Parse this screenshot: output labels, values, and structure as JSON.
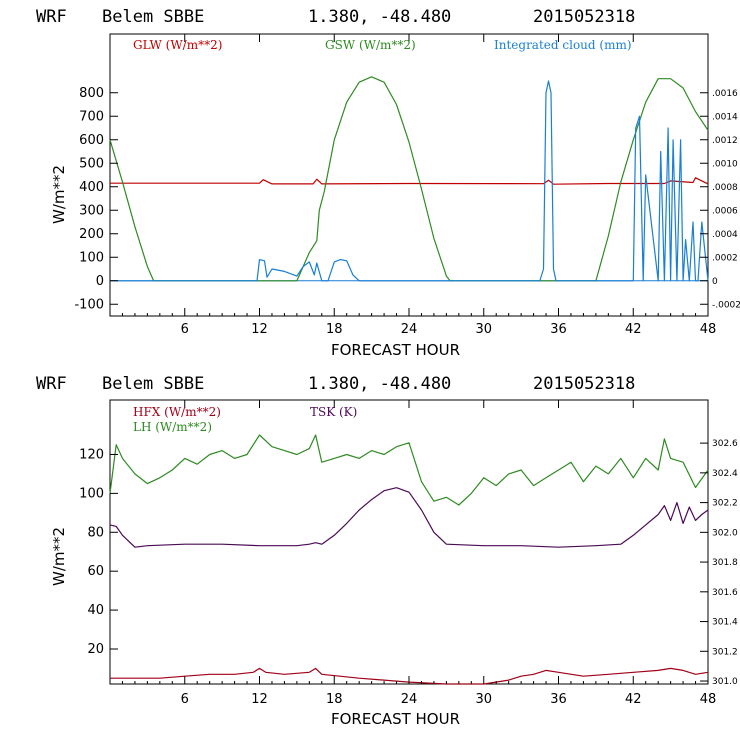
{
  "chart_data": [
    {
      "type": "line",
      "header": {
        "model": "WRF",
        "station": "Belem SBBE",
        "coords": "1.380, -48.480",
        "run": "2015052318"
      },
      "xlabel": "FORECAST HOUR",
      "ylabel": "W/m**2",
      "xlim": [
        0,
        48
      ],
      "ylim": [
        -150,
        1050
      ],
      "xticks": [
        "6",
        "12",
        "18",
        "24",
        "30",
        "36",
        "42",
        "48"
      ],
      "yticks": [
        "-100",
        "0",
        "100",
        "200",
        "300",
        "400",
        "500",
        "600",
        "700",
        "800"
      ],
      "right_axis": {
        "label": "Integrated cloud (mm)",
        "ylim": [
          -0.0003,
          0.0021
        ],
        "ticks": [
          ".0016",
          ".0014",
          ".0012",
          ".0010",
          ".0008",
          ".0006",
          ".0004",
          ".0002",
          "0",
          "-.0002"
        ]
      },
      "colors": {
        "GLW": "#c00000",
        "GSW": "#2e8b22",
        "CLOUD": "#1a7fd4"
      },
      "series": [
        {
          "name": "GLW (W/m**2)",
          "key": "GLW",
          "x": [
            0,
            12,
            12.3,
            13,
            16.3,
            16.6,
            17,
            24,
            34.8,
            35.2,
            35.6,
            40,
            44.5,
            45,
            46.8,
            47,
            48
          ],
          "values": [
            415,
            415,
            430,
            412,
            412,
            432,
            412,
            414,
            413,
            428,
            411,
            414,
            414,
            425,
            418,
            438,
            412
          ]
        },
        {
          "name": "GSW (W/m**2)",
          "key": "GSW",
          "x": [
            0,
            1,
            2,
            3,
            3.5,
            15,
            16,
            16.6,
            16.8,
            17.2,
            18,
            19,
            20,
            21,
            22,
            23,
            24,
            25,
            26,
            27,
            27.3,
            39,
            40,
            41,
            42,
            43,
            44,
            45,
            46,
            47,
            48
          ],
          "values": [
            600,
            420,
            230,
            60,
            0,
            0,
            120,
            170,
            300,
            380,
            600,
            760,
            845,
            868,
            845,
            750,
            590,
            390,
            180,
            20,
            0,
            0,
            190,
            420,
            600,
            760,
            860,
            860,
            820,
            720,
            640
          ]
        },
        {
          "name": "Integrated cloud (mm)",
          "key": "CLOUD",
          "axis": "right",
          "x": [
            0,
            11.8,
            12,
            12.4,
            12.6,
            13,
            14,
            15,
            15.5,
            16,
            16.4,
            16.6,
            17,
            17.5,
            18,
            18.5,
            19,
            19.5,
            20,
            20.3,
            34.5,
            34.8,
            35,
            35.2,
            35.4,
            35.6,
            35.8,
            36,
            42,
            42.2,
            42.5,
            42.8,
            43,
            44,
            44.2,
            44.5,
            44.8,
            45,
            45.2,
            45.5,
            45.8,
            46,
            46.2,
            46.5,
            46.8,
            47,
            47.2,
            47.5,
            48
          ],
          "values": [
            0,
            0,
            0.00018,
            0.00017,
            3e-05,
            0.0001,
            8e-05,
            4e-05,
            0.00012,
            0.00016,
            5e-05,
            0.00015,
            0.0,
            0.0,
            0.00016,
            0.00018,
            0.00017,
            5e-05,
            0.0,
            0.0,
            0.0,
            0.0001,
            0.0016,
            0.0017,
            0.0016,
            0.0001,
            0.0,
            0.0,
            0.0,
            0.0013,
            0.0014,
            0.0,
            0.0009,
            0.0,
            0.0011,
            0.0,
            0.0013,
            0.0,
            0.0012,
            0.0,
            0.0012,
            0.0,
            0.00035,
            0.0,
            0.0005,
            0.0,
            0.0,
            0.0005,
            0.0
          ]
        }
      ],
      "legend": [
        {
          "text": "GLW (W/m**2)",
          "key": "GLW"
        },
        {
          "text": "GSW (W/m**2)",
          "key": "GSW"
        },
        {
          "text": "Integrated cloud (mm)",
          "key": "CLOUD"
        }
      ]
    },
    {
      "type": "line",
      "header": {
        "model": "WRF",
        "station": "Belem SBBE",
        "coords": "1.380, -48.480",
        "run": "2015052318"
      },
      "xlabel": "FORECAST HOUR",
      "ylabel": "W/m**2",
      "xlim": [
        0,
        48
      ],
      "ylim": [
        2,
        148
      ],
      "xticks": [
        "6",
        "12",
        "18",
        "24",
        "30",
        "36",
        "42",
        "48"
      ],
      "yticks": [
        "20",
        "40",
        "60",
        "80",
        "100",
        "120"
      ],
      "right_axis": {
        "label": "TSK (K)",
        "ylim": [
          300.98,
          302.89
        ],
        "ticks": [
          "302.6",
          "302.4",
          "302.2",
          "302.0",
          "301.8",
          "301.6",
          "301.4",
          "301.2",
          "301.0"
        ]
      },
      "colors": {
        "HFX": "#a00018",
        "LH": "#2e8b22",
        "TSK": "#4b0a55"
      },
      "series": [
        {
          "name": "HFX (W/m**2)",
          "key": "HFX",
          "x": [
            0,
            2,
            4,
            6,
            8,
            10,
            11.5,
            12,
            12.5,
            14,
            16,
            16.5,
            17,
            20,
            24,
            27,
            30,
            32,
            33,
            34,
            35,
            36,
            38,
            40,
            42,
            44,
            45,
            46,
            47,
            48
          ],
          "values": [
            5,
            5,
            5,
            6,
            7,
            7,
            8,
            10,
            8,
            7,
            8,
            10,
            7,
            5,
            3,
            2,
            2,
            4,
            6,
            7,
            9,
            8,
            6,
            7,
            8,
            9,
            10,
            9,
            7,
            8
          ]
        },
        {
          "name": "LH (W/m**2)",
          "key": "LH",
          "x": [
            0,
            0.5,
            1,
            2,
            3,
            4,
            5,
            6,
            7,
            8,
            9,
            10,
            11,
            12,
            13,
            14,
            15,
            16,
            16.5,
            17,
            18,
            19,
            20,
            21,
            22,
            23,
            24,
            25,
            26,
            27,
            28,
            29,
            30,
            31,
            32,
            33,
            34,
            35,
            36,
            37,
            38,
            39,
            40,
            41,
            42,
            43,
            44,
            44.5,
            45,
            46,
            47,
            48
          ],
          "values": [
            100,
            125,
            118,
            110,
            105,
            108,
            112,
            118,
            115,
            120,
            122,
            118,
            120,
            130,
            124,
            122,
            120,
            123,
            130,
            116,
            118,
            120,
            118,
            122,
            120,
            124,
            126,
            106,
            96,
            98,
            94,
            100,
            108,
            104,
            110,
            112,
            104,
            108,
            112,
            116,
            106,
            114,
            110,
            118,
            108,
            118,
            112,
            128,
            118,
            116,
            103,
            112
          ]
        },
        {
          "name": "TSK (K)",
          "key": "TSK",
          "axis": "right",
          "x": [
            0,
            0.5,
            1,
            2,
            3,
            6,
            9,
            12,
            15,
            16,
            16.5,
            17,
            18,
            19,
            20,
            21,
            22,
            23,
            24,
            25,
            26,
            27,
            30,
            33,
            36,
            39,
            41,
            42,
            43,
            44,
            44.5,
            45,
            45.5,
            46,
            46.5,
            47,
            47.5,
            48
          ],
          "values": [
            302.05,
            302.04,
            301.98,
            301.9,
            301.91,
            301.92,
            301.92,
            301.91,
            301.91,
            301.92,
            301.93,
            301.92,
            301.98,
            302.06,
            302.15,
            302.22,
            302.28,
            302.3,
            302.27,
            302.15,
            302.0,
            301.92,
            301.91,
            301.91,
            301.9,
            301.91,
            301.92,
            301.98,
            302.05,
            302.12,
            302.18,
            302.08,
            302.2,
            302.06,
            302.17,
            302.08,
            302.12,
            302.15
          ]
        }
      ],
      "legend": [
        {
          "text": "HFX (W/m**2)",
          "key": "HFX"
        },
        {
          "text": "LH  (W/m**2)",
          "key": "LH"
        },
        {
          "text": "TSK (K)",
          "key": "TSK"
        }
      ]
    }
  ]
}
